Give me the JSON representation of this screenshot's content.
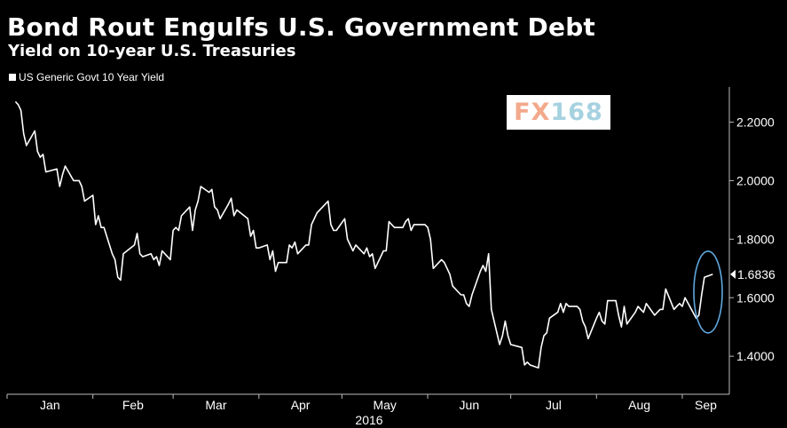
{
  "chart_data": {
    "type": "line",
    "title": "Bond Rout Engulfs U.S. Government Debt",
    "subtitle": "Yield on 10-year U.S. Treasuries",
    "series": [
      {
        "name": "US Generic Govt 10 Year Yield",
        "color": "#ffffff",
        "points": [
          [
            "2016-01-04",
            2.27
          ],
          [
            "2016-01-05",
            2.26
          ],
          [
            "2016-01-06",
            2.24
          ],
          [
            "2016-01-07",
            2.16
          ],
          [
            "2016-01-08",
            2.12
          ],
          [
            "2016-01-11",
            2.17
          ],
          [
            "2016-01-12",
            2.1
          ],
          [
            "2016-01-13",
            2.08
          ],
          [
            "2016-01-14",
            2.09
          ],
          [
            "2016-01-15",
            2.03
          ],
          [
            "2016-01-19",
            2.04
          ],
          [
            "2016-01-20",
            1.98
          ],
          [
            "2016-01-21",
            2.02
          ],
          [
            "2016-01-22",
            2.05
          ],
          [
            "2016-01-25",
            2.0
          ],
          [
            "2016-01-26",
            2.0
          ],
          [
            "2016-01-27",
            2.0
          ],
          [
            "2016-01-28",
            1.98
          ],
          [
            "2016-01-29",
            1.93
          ],
          [
            "2016-02-01",
            1.95
          ],
          [
            "2016-02-02",
            1.85
          ],
          [
            "2016-02-03",
            1.88
          ],
          [
            "2016-02-04",
            1.84
          ],
          [
            "2016-02-05",
            1.84
          ],
          [
            "2016-02-08",
            1.75
          ],
          [
            "2016-02-09",
            1.73
          ],
          [
            "2016-02-10",
            1.67
          ],
          [
            "2016-02-11",
            1.66
          ],
          [
            "2016-02-12",
            1.75
          ],
          [
            "2016-02-16",
            1.78
          ],
          [
            "2016-02-17",
            1.82
          ],
          [
            "2016-02-18",
            1.75
          ],
          [
            "2016-02-19",
            1.74
          ],
          [
            "2016-02-22",
            1.75
          ],
          [
            "2016-02-23",
            1.73
          ],
          [
            "2016-02-24",
            1.74
          ],
          [
            "2016-02-25",
            1.71
          ],
          [
            "2016-02-26",
            1.76
          ],
          [
            "2016-02-29",
            1.73
          ],
          [
            "2016-03-01",
            1.83
          ],
          [
            "2016-03-02",
            1.84
          ],
          [
            "2016-03-03",
            1.83
          ],
          [
            "2016-03-04",
            1.88
          ],
          [
            "2016-03-07",
            1.91
          ],
          [
            "2016-03-08",
            1.83
          ],
          [
            "2016-03-09",
            1.9
          ],
          [
            "2016-03-10",
            1.93
          ],
          [
            "2016-03-11",
            1.98
          ],
          [
            "2016-03-14",
            1.96
          ],
          [
            "2016-03-15",
            1.97
          ],
          [
            "2016-03-16",
            1.91
          ],
          [
            "2016-03-17",
            1.9
          ],
          [
            "2016-03-18",
            1.87
          ],
          [
            "2016-03-21",
            1.92
          ],
          [
            "2016-03-22",
            1.94
          ],
          [
            "2016-03-23",
            1.88
          ],
          [
            "2016-03-24",
            1.9
          ],
          [
            "2016-03-28",
            1.87
          ],
          [
            "2016-03-29",
            1.81
          ],
          [
            "2016-03-30",
            1.83
          ],
          [
            "2016-03-31",
            1.77
          ],
          [
            "2016-04-01",
            1.77
          ],
          [
            "2016-04-04",
            1.78
          ],
          [
            "2016-04-05",
            1.73
          ],
          [
            "2016-04-06",
            1.76
          ],
          [
            "2016-04-07",
            1.69
          ],
          [
            "2016-04-08",
            1.72
          ],
          [
            "2016-04-11",
            1.72
          ],
          [
            "2016-04-12",
            1.78
          ],
          [
            "2016-04-13",
            1.77
          ],
          [
            "2016-04-14",
            1.79
          ],
          [
            "2016-04-15",
            1.75
          ],
          [
            "2016-04-18",
            1.78
          ],
          [
            "2016-04-19",
            1.78
          ],
          [
            "2016-04-20",
            1.85
          ],
          [
            "2016-04-21",
            1.87
          ],
          [
            "2016-04-22",
            1.89
          ],
          [
            "2016-04-25",
            1.92
          ],
          [
            "2016-04-26",
            1.93
          ],
          [
            "2016-04-27",
            1.85
          ],
          [
            "2016-04-28",
            1.83
          ],
          [
            "2016-04-29",
            1.83
          ],
          [
            "2016-05-02",
            1.87
          ],
          [
            "2016-05-03",
            1.8
          ],
          [
            "2016-05-04",
            1.78
          ],
          [
            "2016-05-05",
            1.76
          ],
          [
            "2016-05-06",
            1.78
          ],
          [
            "2016-05-09",
            1.75
          ],
          [
            "2016-05-10",
            1.77
          ],
          [
            "2016-05-11",
            1.74
          ],
          [
            "2016-05-12",
            1.75
          ],
          [
            "2016-05-13",
            1.7
          ],
          [
            "2016-05-16",
            1.76
          ],
          [
            "2016-05-17",
            1.76
          ],
          [
            "2016-05-18",
            1.86
          ],
          [
            "2016-05-19",
            1.85
          ],
          [
            "2016-05-20",
            1.84
          ],
          [
            "2016-05-23",
            1.84
          ],
          [
            "2016-05-24",
            1.86
          ],
          [
            "2016-05-25",
            1.87
          ],
          [
            "2016-05-26",
            1.83
          ],
          [
            "2016-05-27",
            1.85
          ],
          [
            "2016-05-31",
            1.85
          ],
          [
            "2016-06-01",
            1.84
          ],
          [
            "2016-06-02",
            1.8
          ],
          [
            "2016-06-03",
            1.7
          ],
          [
            "2016-06-06",
            1.73
          ],
          [
            "2016-06-07",
            1.72
          ],
          [
            "2016-06-08",
            1.7
          ],
          [
            "2016-06-09",
            1.68
          ],
          [
            "2016-06-10",
            1.64
          ],
          [
            "2016-06-13",
            1.61
          ],
          [
            "2016-06-14",
            1.61
          ],
          [
            "2016-06-15",
            1.58
          ],
          [
            "2016-06-16",
            1.57
          ],
          [
            "2016-06-17",
            1.61
          ],
          [
            "2016-06-20",
            1.69
          ],
          [
            "2016-06-21",
            1.71
          ],
          [
            "2016-06-22",
            1.69
          ],
          [
            "2016-06-23",
            1.75
          ],
          [
            "2016-06-24",
            1.56
          ],
          [
            "2016-06-27",
            1.44
          ],
          [
            "2016-06-28",
            1.47
          ],
          [
            "2016-06-29",
            1.52
          ],
          [
            "2016-06-30",
            1.47
          ],
          [
            "2016-07-01",
            1.44
          ],
          [
            "2016-07-05",
            1.43
          ],
          [
            "2016-07-06",
            1.37
          ],
          [
            "2016-07-07",
            1.38
          ],
          [
            "2016-07-08",
            1.37
          ],
          [
            "2016-07-11",
            1.36
          ],
          [
            "2016-07-12",
            1.43
          ],
          [
            "2016-07-13",
            1.47
          ],
          [
            "2016-07-14",
            1.48
          ],
          [
            "2016-07-15",
            1.53
          ],
          [
            "2016-07-18",
            1.55
          ],
          [
            "2016-07-19",
            1.58
          ],
          [
            "2016-07-20",
            1.55
          ],
          [
            "2016-07-21",
            1.58
          ],
          [
            "2016-07-22",
            1.57
          ],
          [
            "2016-07-25",
            1.57
          ],
          [
            "2016-07-26",
            1.56
          ],
          [
            "2016-07-27",
            1.52
          ],
          [
            "2016-07-28",
            1.5
          ],
          [
            "2016-07-29",
            1.46
          ],
          [
            "2016-08-01",
            1.53
          ],
          [
            "2016-08-02",
            1.55
          ],
          [
            "2016-08-03",
            1.52
          ],
          [
            "2016-08-04",
            1.51
          ],
          [
            "2016-08-05",
            1.59
          ],
          [
            "2016-08-08",
            1.59
          ],
          [
            "2016-08-09",
            1.54
          ],
          [
            "2016-08-10",
            1.5
          ],
          [
            "2016-08-11",
            1.57
          ],
          [
            "2016-08-12",
            1.51
          ],
          [
            "2016-08-15",
            1.55
          ],
          [
            "2016-08-16",
            1.57
          ],
          [
            "2016-08-17",
            1.56
          ],
          [
            "2016-08-18",
            1.55
          ],
          [
            "2016-08-19",
            1.58
          ],
          [
            "2016-08-22",
            1.54
          ],
          [
            "2016-08-23",
            1.55
          ],
          [
            "2016-08-24",
            1.56
          ],
          [
            "2016-08-25",
            1.56
          ],
          [
            "2016-08-26",
            1.63
          ],
          [
            "2016-08-29",
            1.56
          ],
          [
            "2016-08-30",
            1.57
          ],
          [
            "2016-08-31",
            1.58
          ],
          [
            "2016-09-01",
            1.57
          ],
          [
            "2016-09-02",
            1.6
          ],
          [
            "2016-09-06",
            1.53
          ],
          [
            "2016-09-07",
            1.54
          ],
          [
            "2016-09-08",
            1.61
          ],
          [
            "2016-09-09",
            1.67
          ],
          [
            "2016-09-12",
            1.68
          ]
        ]
      }
    ],
    "last_value_label": "1.6836",
    "xlabel": "",
    "ylabel": "",
    "x_tick_labels": [
      "Jan",
      "Feb",
      "Mar",
      "Apr",
      "May",
      "Jun",
      "Jul",
      "Aug",
      "Sep"
    ],
    "x_tick_dates": [
      "2016-01-01",
      "2016-02-01",
      "2016-03-01",
      "2016-04-01",
      "2016-05-01",
      "2016-06-01",
      "2016-07-01",
      "2016-08-01",
      "2016-09-01"
    ],
    "x_year_label": "2016",
    "xlim": [
      "2016-01-01",
      "2016-09-18"
    ],
    "y_ticks": [
      1.4,
      1.6,
      1.8,
      2.0,
      2.2
    ],
    "y_tick_labels": [
      "1.4000",
      "1.6000",
      "1.8000",
      "2.0000",
      "2.2000"
    ],
    "ylim": [
      1.27,
      2.32
    ],
    "grid": false,
    "legend_position": "top-left",
    "highlight": "ellipse around the latest yield points",
    "highlight_color": "#5fa8e0",
    "axis_color": "#bbbbbb",
    "background": "#000000"
  },
  "watermark": {
    "part1": "FX",
    "part2": "168"
  }
}
